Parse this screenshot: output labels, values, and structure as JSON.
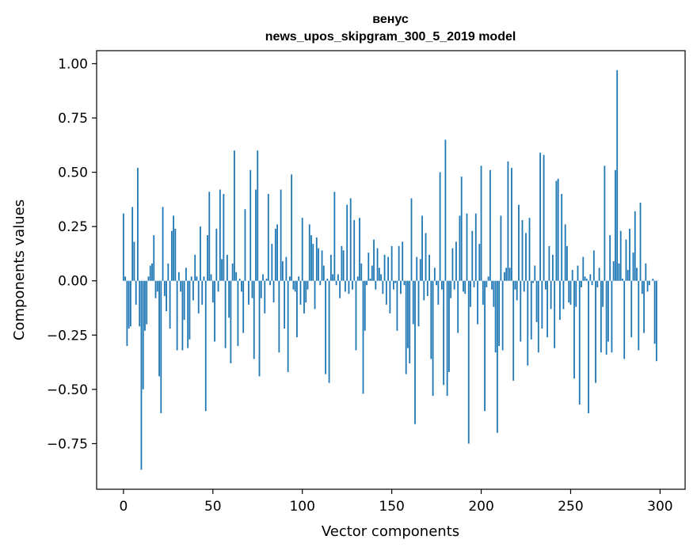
{
  "chart_data": {
    "type": "bar",
    "title_line1": "венус",
    "title_line2": "news_upos_skipgram_300_5_2019 model",
    "xlabel": "Vector components",
    "ylabel": "Components values",
    "xlim": [
      -15,
      314
    ],
    "ylim": [
      -0.96,
      1.06
    ],
    "xticks": [
      0,
      50,
      100,
      150,
      200,
      250,
      300
    ],
    "xtick_labels": [
      "0",
      "50",
      "100",
      "150",
      "200",
      "250",
      "300"
    ],
    "yticks": [
      -0.75,
      -0.5,
      -0.25,
      0.0,
      0.25,
      0.5,
      0.75,
      1.0
    ],
    "ytick_labels": [
      "−0.75",
      "−0.50",
      "−0.25",
      "0.00",
      "0.25",
      "0.50",
      "0.75",
      "1.00"
    ],
    "bar_color": "#1f77b4",
    "grid": false,
    "values": [
      0.31,
      0.02,
      -0.3,
      -0.22,
      -0.21,
      0.34,
      0.18,
      -0.11,
      0.52,
      -0.21,
      -0.87,
      -0.5,
      -0.23,
      -0.2,
      0.02,
      0.07,
      0.08,
      0.21,
      -0.08,
      -0.05,
      -0.44,
      -0.61,
      0.34,
      -0.07,
      -0.14,
      0.08,
      -0.22,
      0.23,
      0.3,
      0.24,
      -0.32,
      0.04,
      -0.05,
      -0.32,
      -0.18,
      0.06,
      -0.31,
      -0.27,
      0.02,
      -0.09,
      0.12,
      0.02,
      -0.15,
      0.25,
      -0.11,
      0.02,
      -0.6,
      0.21,
      0.41,
      0.03,
      -0.1,
      -0.28,
      0.24,
      -0.05,
      0.42,
      0.1,
      0.4,
      -0.31,
      0.12,
      -0.17,
      -0.38,
      0.08,
      0.6,
      0.04,
      -0.3,
      0.01,
      -0.05,
      -0.24,
      0.33,
      0.0,
      -0.11,
      0.51,
      -0.08,
      -0.36,
      0.42,
      0.6,
      -0.44,
      -0.08,
      0.03,
      -0.15,
      0.01,
      0.4,
      -0.02,
      0.17,
      -0.1,
      0.24,
      0.26,
      -0.33,
      0.42,
      0.09,
      -0.22,
      0.11,
      -0.42,
      0.02,
      0.49,
      -0.04,
      -0.05,
      -0.26,
      0.02,
      -0.11,
      0.29,
      -0.15,
      -0.1,
      -0.04,
      0.26,
      0.21,
      0.17,
      -0.13,
      0.2,
      0.15,
      -0.02,
      0.14,
      0.07,
      -0.43,
      0.01,
      -0.47,
      0.12,
      0.03,
      0.41,
      -0.02,
      0.03,
      -0.08,
      0.16,
      0.14,
      -0.05,
      0.35,
      -0.06,
      0.38,
      -0.04,
      0.28,
      -0.32,
      0.02,
      0.29,
      0.08,
      -0.52,
      -0.23,
      -0.02,
      0.13,
      0.01,
      0.07,
      0.19,
      -0.04,
      0.15,
      0.06,
      0.03,
      -0.06,
      0.12,
      -0.11,
      0.11,
      -0.15,
      0.16,
      -0.04,
      -0.01,
      -0.23,
      0.16,
      -0.06,
      0.18,
      -0.02,
      -0.43,
      -0.31,
      -0.38,
      0.38,
      -0.2,
      -0.66,
      0.11,
      -0.21,
      0.1,
      0.3,
      -0.09,
      0.22,
      -0.07,
      0.12,
      -0.36,
      -0.53,
      0.06,
      -0.02,
      -0.11,
      0.5,
      -0.04,
      -0.48,
      0.65,
      -0.53,
      -0.42,
      -0.08,
      0.15,
      -0.04,
      0.18,
      -0.24,
      0.3,
      0.48,
      -0.05,
      -0.06,
      0.31,
      -0.75,
      -0.12,
      0.23,
      -0.03,
      0.31,
      -0.2,
      0.17,
      0.53,
      -0.11,
      -0.6,
      -0.03,
      0.02,
      0.51,
      -0.04,
      -0.12,
      -0.33,
      -0.7,
      -0.3,
      0.3,
      -0.32,
      0.04,
      0.06,
      0.55,
      0.06,
      0.52,
      -0.46,
      -0.04,
      -0.09,
      0.35,
      -0.28,
      0.28,
      -0.05,
      0.22,
      -0.39,
      0.29,
      -0.27,
      -0.01,
      0.07,
      -0.19,
      -0.33,
      0.59,
      -0.22,
      0.58,
      -0.04,
      -0.26,
      0.16,
      -0.13,
      0.12,
      -0.31,
      0.46,
      0.47,
      -0.18,
      0.4,
      -0.13,
      0.26,
      0.16,
      -0.1,
      -0.11,
      0.05,
      -0.45,
      -0.12,
      0.07,
      -0.57,
      -0.03,
      0.11,
      0.02,
      0.01,
      -0.61,
      0.03,
      -0.02,
      0.14,
      -0.47,
      -0.03,
      0.06,
      -0.33,
      -0.12,
      0.53,
      -0.34,
      -0.28,
      0.21,
      -0.33,
      0.09,
      0.51,
      0.97,
      0.08,
      0.23,
      0.01,
      -0.36,
      0.19,
      0.05,
      0.24,
      -0.26,
      0.13,
      0.32,
      0.06,
      -0.32,
      0.36,
      -0.06,
      -0.24,
      0.08,
      -0.05,
      -0.02,
      0.0,
      0.01,
      -0.29,
      -0.37,
      0.0
    ]
  }
}
